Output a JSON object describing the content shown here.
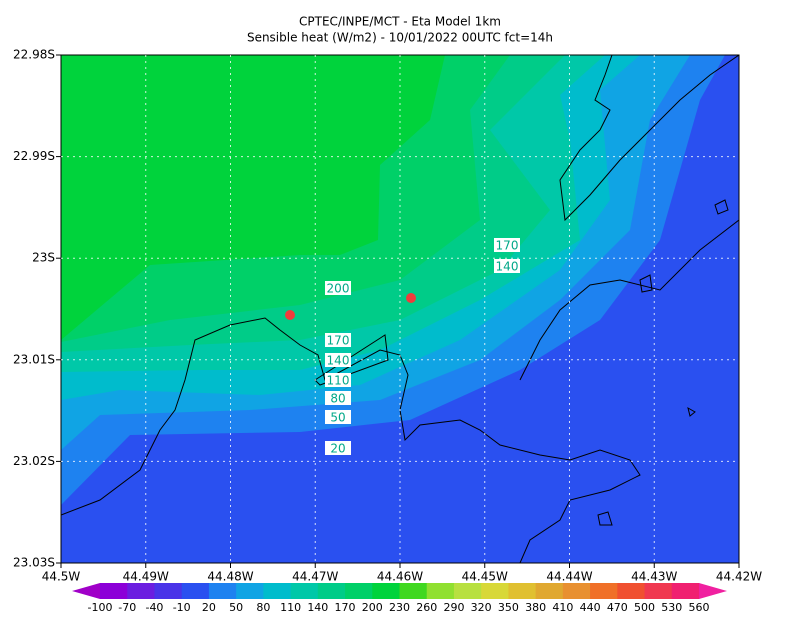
{
  "title": [
    "CPTEC/INPE/MCT -  Eta Model 1km",
    "Sensible heat (W/m2) - 10/01/2022 00UTC fct=14h"
  ],
  "y_axis_labels": [
    "22.98S",
    "22.99S",
    "23S",
    "23.01S",
    "23.02S",
    "23.03S"
  ],
  "x_axis_labels": [
    "44.5W",
    "44.49W",
    "44.48W",
    "44.47W",
    "44.46W",
    "44.45W",
    "44.44W",
    "44.43W",
    "44.42W"
  ],
  "contour_labels": [
    170,
    140,
    200,
    170,
    140,
    110,
    80,
    50,
    20
  ],
  "colorbar": {
    "labels": [
      -100,
      -70,
      -40,
      -10,
      20,
      50,
      80,
      110,
      140,
      170,
      200,
      230,
      260,
      290,
      320,
      350,
      380,
      410,
      440,
      470,
      500,
      530,
      560
    ],
    "colors": [
      "#a000c8",
      "#8c00d8",
      "#6c1ee0",
      "#4a34e8",
      "#2a50f0",
      "#1e82f0",
      "#10a4e4",
      "#00bccc",
      "#00c8a8",
      "#00cc88",
      "#00d068",
      "#00d33c",
      "#40d820",
      "#90e030",
      "#b8e040",
      "#d8d838",
      "#e0c030",
      "#e0a830",
      "#e89030",
      "#f07028",
      "#f05030",
      "#f03850",
      "#f02070",
      "#f020a0"
    ]
  }
}
